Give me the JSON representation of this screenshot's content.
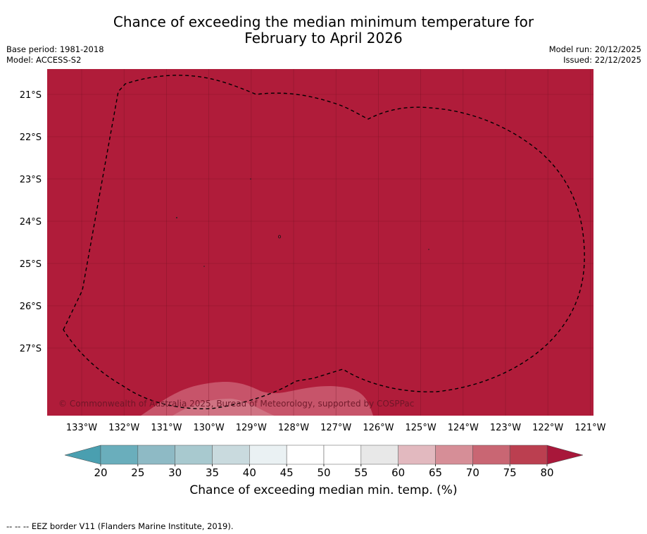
{
  "header": {
    "title_line1": "Chance of exceeding the median minimum temperature for",
    "title_line2": "February to April 2026",
    "base_period": "Base period: 1981-2018",
    "model": "Model: ACCESS-S2",
    "model_run": "Model run: 20/12/2025",
    "issued": "Issued: 22/12/2025"
  },
  "map": {
    "lat_labels": [
      "21°S",
      "22°S",
      "23°S",
      "24°S",
      "25°S",
      "26°S",
      "27°S"
    ],
    "lon_labels": [
      "133°W",
      "132°W",
      "131°W",
      "130°W",
      "129°W",
      "128°W",
      "127°W",
      "126°W",
      "125°W",
      "124°W",
      "123°W",
      "122°W",
      "121°W"
    ],
    "watermark": "© Commonwealth of Australia 2025, Bureau of Meteorology, supported by COSPPac",
    "fill_color": "#b01c3a",
    "eez_label": "EEZ border"
  },
  "colorbar": {
    "ticks": [
      "20",
      "25",
      "30",
      "35",
      "40",
      "45",
      "50",
      "55",
      "60",
      "65",
      "70",
      "75",
      "80"
    ],
    "colors": [
      "#6aaebc",
      "#8ebac5",
      "#a8c9cf",
      "#c9dade",
      "#eaf1f3",
      "#ffffff",
      "#ffffff",
      "#e8e8e8",
      "#e2b9bf",
      "#d68e97",
      "#c96673",
      "#bb3f50"
    ],
    "under_color": "#4a9fb0",
    "over_color": "#a8173a",
    "label": "Chance of exceeding median min. temp. (%)"
  },
  "footer": {
    "legend": "--  --  -- EEZ border V11 (Flanders Marine Institute, 2019)."
  }
}
